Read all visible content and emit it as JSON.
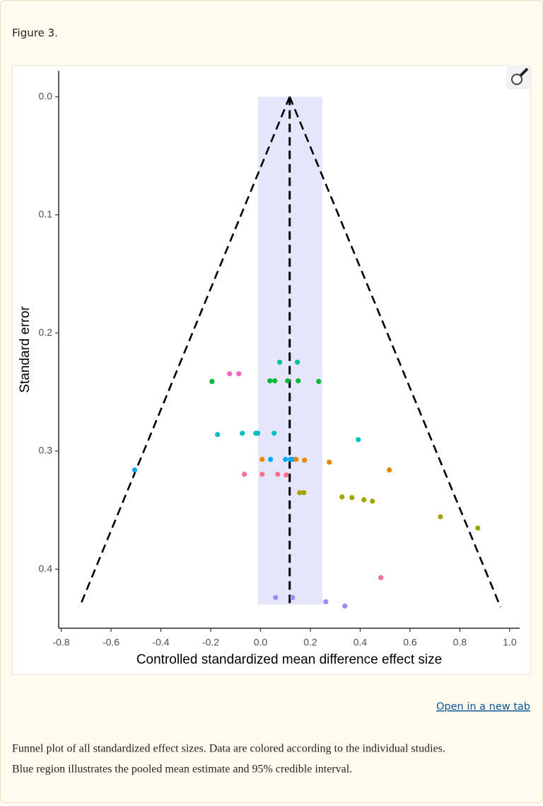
{
  "figure_label": "Figure 3.",
  "chart_data": {
    "type": "scatter",
    "x_label": "Controlled standardized mean difference effect size",
    "y_label": "Standard error",
    "xlim": [
      -0.81,
      1.04
    ],
    "ylim": [
      -0.022,
      0.45
    ],
    "y_reversed": true,
    "xticks": [
      -0.8,
      -0.6,
      -0.4,
      -0.2,
      {
        "value": 0,
        "label": "0.0"
      },
      0.2,
      0.4,
      0.6,
      0.8,
      {
        "value": 1,
        "label": "1.0"
      }
    ],
    "yticks": [
      {
        "value": 0,
        "label": "0.0"
      },
      0.1,
      0.2,
      0.3,
      0.4
    ],
    "pooled_estimate": 0.117,
    "interval": {
      "x": [
        -0.01,
        0.248
      ],
      "y": [
        0,
        0.43
      ],
      "color": "#e5e5fb"
    },
    "funnel": {
      "apex": [
        0.117,
        0
      ],
      "left": [
        -0.726,
        0.432
      ],
      "right": [
        0.963,
        0.432
      ]
    },
    "series": [
      {
        "color": "#ff61c3",
        "x": [
          -0.124,
          -0.087
        ],
        "y": [
          0.2345,
          0.2345
        ]
      },
      {
        "color": "#00ba38",
        "x": [
          -0.195,
          0.0376,
          0.0575,
          0.1086,
          0.151,
          0.2335
        ],
        "y": [
          0.241,
          0.2405,
          0.2405,
          0.2405,
          0.2405,
          0.241
        ]
      },
      {
        "color": "#00bf9a",
        "x": [
          0.077,
          0.148
        ],
        "y": [
          0.2247,
          0.2247
        ]
      },
      {
        "color": "#00bfc4",
        "x": [
          -0.1725,
          -0.073,
          -0.019,
          -0.011,
          0.0546,
          0.3925
        ],
        "y": [
          0.286,
          0.2849,
          0.2849,
          0.2849,
          0.2849,
          0.2903
        ]
      },
      {
        "color": "#00a9ff",
        "x": [
          -0.505,
          0.0404,
          0.1,
          0.12,
          0.128,
          0.14
        ],
        "y": [
          0.316,
          0.307,
          0.307,
          0.307,
          0.307,
          0.307
        ]
      },
      {
        "color": "#e58700",
        "x": [
          0.0064,
          0.1427,
          0.1767,
          0.276,
          0.517
        ],
        "y": [
          0.307,
          0.307,
          0.3077,
          0.3094,
          0.316
        ]
      },
      {
        "color": "#fc6f8e",
        "x": [
          -0.0646,
          0.0064,
          0.0689,
          0.103,
          0.483
        ],
        "y": [
          0.3196,
          0.3196,
          0.3196,
          0.3202,
          0.4072
        ]
      },
      {
        "color": "#a3a500",
        "x": [
          0.157,
          0.174,
          0.327,
          0.367,
          0.415,
          0.449,
          0.722,
          0.872
        ],
        "y": [
          0.3352,
          0.3352,
          0.3388,
          0.3394,
          0.3412,
          0.3424,
          0.3556,
          0.3652
        ]
      },
      {
        "color": "#9590ff",
        "x": [
          0.0603,
          0.1285,
          0.262,
          0.3386
        ],
        "y": [
          0.424,
          0.424,
          0.4276,
          0.4312
        ]
      }
    ]
  },
  "link": "Open in a new tab",
  "caption": [
    "Funnel plot of all standardized effect sizes. Data are colored according to the individual studies.",
    "Blue region illustrates the pooled mean estimate and 95% credible interval."
  ]
}
